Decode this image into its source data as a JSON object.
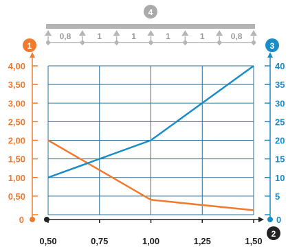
{
  "chart_data": {
    "type": "line",
    "x_ticks": [
      "0,50",
      "0,75",
      "1,00",
      "1,25",
      "1,50"
    ],
    "x_range": [
      0.5,
      1.5
    ],
    "left_axis": {
      "ticks": [
        "4,00",
        "3,50",
        "3,00",
        "2,50",
        "2,00",
        "1,50",
        "1,00",
        "0,50",
        "0"
      ],
      "range": [
        0,
        4
      ],
      "color": "#f07a2e",
      "badge": "1"
    },
    "right_axis": {
      "ticks": [
        "40",
        "35",
        "30",
        "25",
        "20",
        "15",
        "10",
        "5",
        "0"
      ],
      "range": [
        0,
        40
      ],
      "color": "#1a8cc8",
      "badge": "3"
    },
    "x_badge": "2",
    "top_badge": "4",
    "top_segments": [
      "0,8",
      "1",
      "1",
      "1",
      "1",
      "0,8"
    ],
    "series": [
      {
        "axis": "left",
        "color": "#f07a2e",
        "points": [
          [
            0.5,
            2.0
          ],
          [
            1.0,
            0.4
          ],
          [
            1.5,
            0.12
          ]
        ]
      },
      {
        "axis": "right",
        "color": "#1a8cc8",
        "points": [
          [
            0.5,
            10
          ],
          [
            1.0,
            20
          ],
          [
            1.5,
            40
          ]
        ]
      }
    ],
    "grid": true
  }
}
